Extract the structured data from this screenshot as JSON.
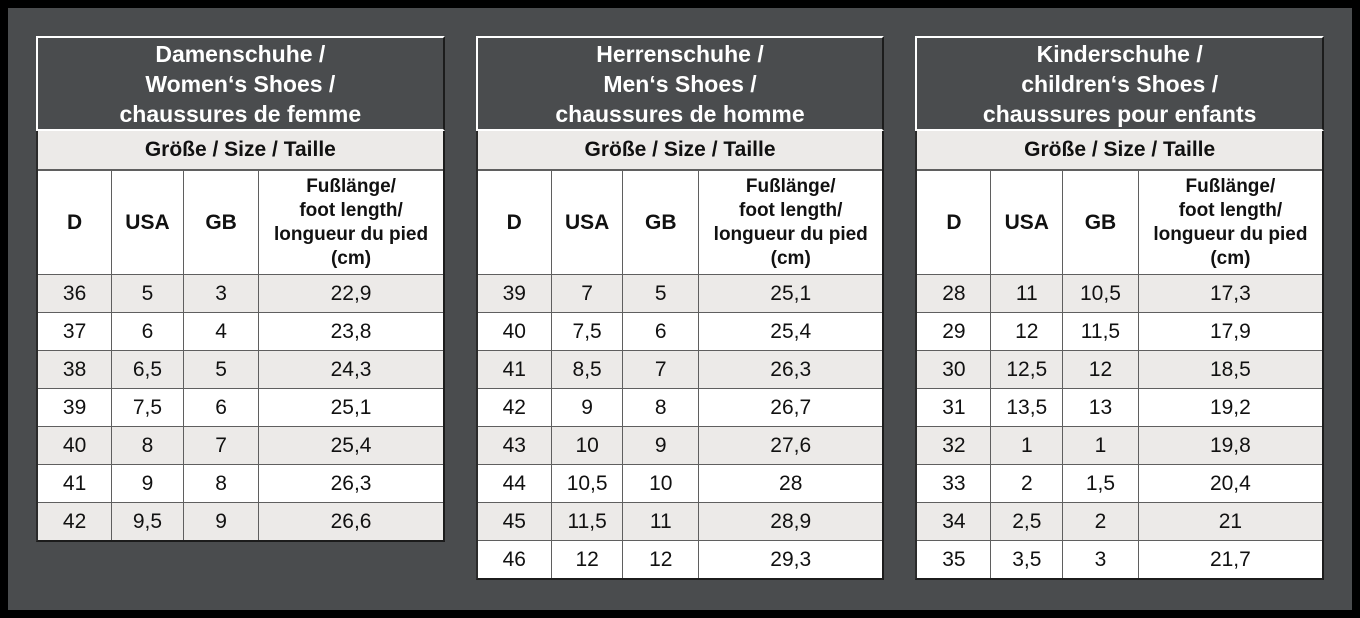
{
  "page": {
    "background_color": "#4a4c4e",
    "frame_color": "#000000",
    "accent_light_row_color": "#eceae8"
  },
  "tables": [
    {
      "title": "Damenschuhe /\nWomen‘s Shoes /\nchaussures de femme",
      "subheader": "Größe / Size / Taille",
      "columns": {
        "d": "D",
        "usa": "USA",
        "gb": "GB",
        "foot_length": "Fußlänge/\nfoot length/\nlongueur du pied\n(cm)"
      },
      "rows": [
        [
          "36",
          "5",
          "3",
          "22,9"
        ],
        [
          "37",
          "6",
          "4",
          "23,8"
        ],
        [
          "38",
          "6,5",
          "5",
          "24,3"
        ],
        [
          "39",
          "7,5",
          "6",
          "25,1"
        ],
        [
          "40",
          "8",
          "7",
          "25,4"
        ],
        [
          "41",
          "9",
          "8",
          "26,3"
        ],
        [
          "42",
          "9,5",
          "9",
          "26,6"
        ]
      ]
    },
    {
      "title": "Herrenschuhe /\nMen‘s Shoes /\nchaussures de homme",
      "subheader": "Größe / Size / Taille",
      "columns": {
        "d": "D",
        "usa": "USA",
        "gb": "GB",
        "foot_length": "Fußlänge/\nfoot length/\nlongueur du pied\n(cm)"
      },
      "rows": [
        [
          "39",
          "7",
          "5",
          "25,1"
        ],
        [
          "40",
          "7,5",
          "6",
          "25,4"
        ],
        [
          "41",
          "8,5",
          "7",
          "26,3"
        ],
        [
          "42",
          "9",
          "8",
          "26,7"
        ],
        [
          "43",
          "10",
          "9",
          "27,6"
        ],
        [
          "44",
          "10,5",
          "10",
          "28"
        ],
        [
          "45",
          "11,5",
          "11",
          "28,9"
        ],
        [
          "46",
          "12",
          "12",
          "29,3"
        ]
      ]
    },
    {
      "title": "Kinderschuhe /\nchildren‘s Shoes /\nchaussures pour enfants",
      "subheader": "Größe / Size / Taille",
      "columns": {
        "d": "D",
        "usa": "USA",
        "gb": "GB",
        "foot_length": "Fußlänge/\nfoot length/\nlongueur du pied\n(cm)"
      },
      "rows": [
        [
          "28",
          "11",
          "10,5",
          "17,3"
        ],
        [
          "29",
          "12",
          "11,5",
          "17,9"
        ],
        [
          "30",
          "12,5",
          "12",
          "18,5"
        ],
        [
          "31",
          "13,5",
          "13",
          "19,2"
        ],
        [
          "32",
          "1",
          "1",
          "19,8"
        ],
        [
          "33",
          "2",
          "1,5",
          "20,4"
        ],
        [
          "34",
          "2,5",
          "2",
          "21"
        ],
        [
          "35",
          "3,5",
          "3",
          "21,7"
        ]
      ]
    }
  ]
}
